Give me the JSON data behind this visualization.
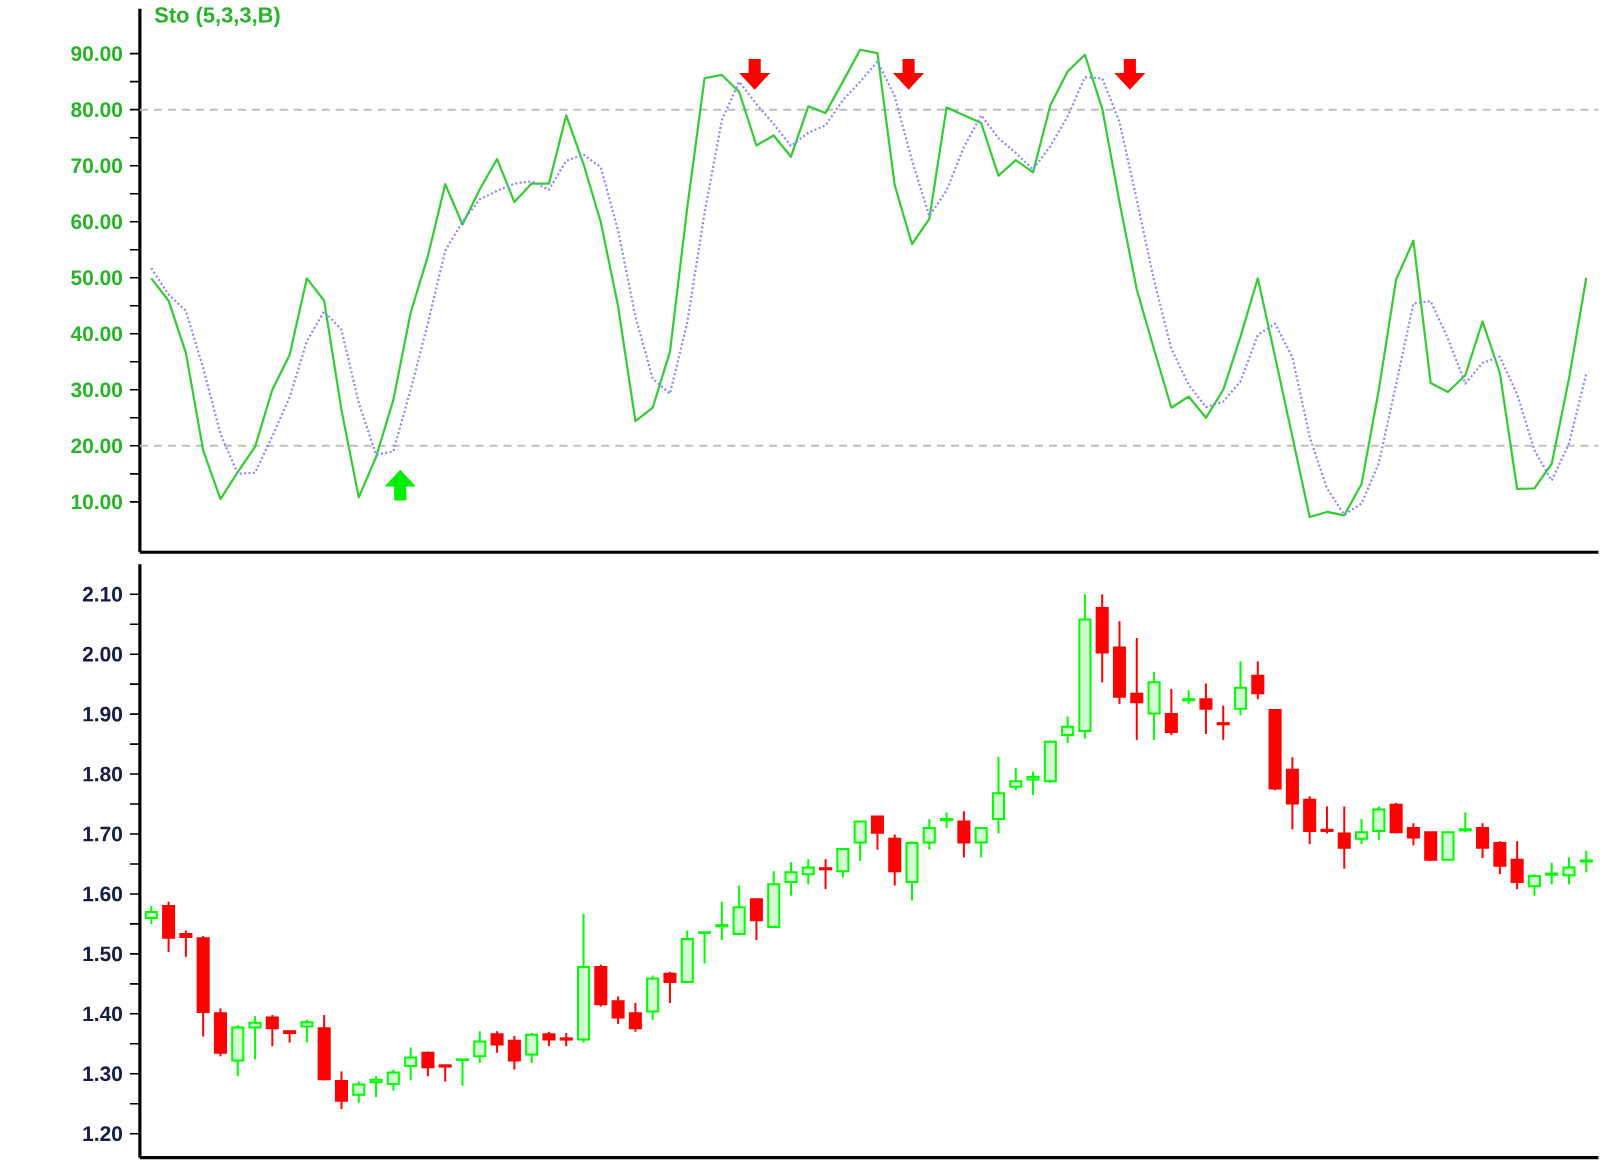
{
  "chart_data": [
    {
      "type": "line",
      "title": "Sto (5,3,3,B)",
      "tick_labels": "y",
      "ylim": [
        1,
        98
      ],
      "categories": [
        null,
        null,
        null,
        null,
        null,
        null,
        null,
        null,
        null,
        null,
        null,
        null,
        null,
        null,
        null,
        null,
        null,
        null,
        null,
        null,
        null,
        null,
        null,
        null,
        null,
        null,
        null,
        null,
        null,
        null,
        null,
        null,
        null,
        null,
        null,
        null,
        null,
        null,
        null,
        null,
        null,
        null,
        null,
        null,
        null,
        null,
        null,
        null,
        null,
        null,
        null,
        null,
        null,
        null,
        null,
        null,
        null,
        null,
        null,
        null,
        null,
        null,
        null,
        null,
        null,
        null,
        null,
        null,
        null,
        null,
        null,
        null,
        null,
        null,
        null,
        null,
        null,
        null,
        null,
        null,
        null,
        null,
        null,
        null
      ],
      "yticks": [
        {
          "value": 10,
          "label": "10.00"
        },
        {
          "value": 15,
          "label": null
        },
        {
          "value": 20,
          "label": "20.00"
        },
        {
          "value": 25,
          "label": null
        },
        {
          "value": 30,
          "label": "30.00"
        },
        {
          "value": 35,
          "label": null
        },
        {
          "value": 40,
          "label": "40.00"
        },
        {
          "value": 45,
          "label": null
        },
        {
          "value": 50,
          "label": "50.00"
        },
        {
          "value": 55,
          "label": null
        },
        {
          "value": 60,
          "label": "60.00"
        },
        {
          "value": 65,
          "label": null
        },
        {
          "value": 70,
          "label": "70.00"
        },
        {
          "value": 75,
          "label": null
        },
        {
          "value": 80,
          "label": "80.00"
        },
        {
          "value": 85,
          "label": null
        },
        {
          "value": 90,
          "label": "90.00"
        }
      ],
      "ref_lines": [
        {
          "axis": "y",
          "value": 20,
          "color": "#c0c0c0",
          "line_style": "dashed"
        },
        {
          "axis": "y",
          "value": 80,
          "color": "#c0c0c0",
          "line_style": "dashed"
        }
      ],
      "series": [
        {
          "color": "#33cc33",
          "line_style": "solid",
          "values": [
            49.9,
            45.9,
            36.6,
            19.2,
            10.5,
            15.3,
            19.8,
            30.0,
            36.2,
            49.9,
            45.9,
            26.4,
            10.8,
            18.0,
            28.2,
            43.7,
            53.9,
            66.7,
            59.5,
            65.8,
            71.2,
            63.5,
            66.8,
            66.8,
            79.0,
            70.3,
            59.9,
            44.9,
            24.4,
            26.8,
            36.8,
            62.5,
            85.6,
            86.2,
            83.2,
            73.6,
            75.4,
            71.6,
            80.6,
            79.4,
            85.0,
            90.7,
            90.1,
            66.5,
            56.0,
            60.5,
            80.4,
            79.0,
            77.6,
            68.2,
            71.0,
            68.8,
            80.8,
            86.8,
            89.8,
            80.2,
            63.5,
            47.9,
            37.2,
            26.8,
            28.8,
            25.0,
            30.0,
            39.5,
            49.9,
            35.9,
            21.6,
            7.3,
            8.2,
            7.6,
            13.2,
            30.0,
            49.7,
            56.6,
            31.2,
            29.6,
            32.6,
            42.2,
            33.0,
            12.3,
            12.4,
            16.8,
            32.0,
            50.0
          ]
        },
        {
          "color": "#8888ff",
          "line_style": "dotted",
          "values": [
            51.7,
            47.0,
            44.1,
            33.9,
            22.1,
            15.0,
            15.2,
            21.7,
            28.7,
            38.7,
            44.0,
            40.7,
            27.7,
            18.4,
            19.0,
            30.0,
            41.9,
            54.8,
            60.0,
            64.0,
            65.5,
            66.8,
            67.2,
            65.7,
            70.9,
            72.0,
            69.7,
            58.4,
            43.1,
            32.0,
            29.3,
            42.0,
            61.6,
            78.1,
            85.0,
            81.0,
            77.4,
            73.5,
            75.9,
            77.2,
            81.7,
            85.0,
            88.6,
            82.4,
            70.9,
            61.0,
            65.6,
            73.3,
            79.0,
            74.9,
            72.3,
            69.3,
            73.5,
            78.8,
            85.8,
            85.6,
            77.8,
            63.9,
            49.5,
            37.3,
            30.9,
            26.9,
            27.9,
            31.5,
            39.8,
            41.8,
            35.8,
            21.6,
            12.4,
            7.7,
            9.7,
            16.9,
            31.0,
            45.4,
            45.8,
            39.1,
            31.1,
            34.8,
            35.9,
            29.2,
            19.2,
            13.8,
            20.4,
            32.9
          ]
        }
      ]
    },
    {
      "type": "candlestick",
      "tick_labels": "y",
      "ylim": [
        1.16,
        2.15
      ],
      "categories": [
        null,
        null,
        null,
        null,
        null,
        null,
        null,
        null,
        null,
        null,
        null,
        null,
        null,
        null,
        null,
        null,
        null,
        null,
        null,
        null,
        null,
        null,
        null,
        null,
        null,
        null,
        null,
        null,
        null,
        null,
        null,
        null,
        null,
        null,
        null,
        null,
        null,
        null,
        null,
        null,
        null,
        null,
        null,
        null,
        null,
        null,
        null,
        null,
        null,
        null,
        null,
        null,
        null,
        null,
        null,
        null,
        null,
        null,
        null,
        null,
        null,
        null,
        null,
        null,
        null,
        null,
        null,
        null,
        null,
        null,
        null,
        null,
        null,
        null,
        null,
        null,
        null,
        null,
        null,
        null,
        null,
        null,
        null,
        null
      ],
      "yticks": [
        {
          "value": 1.2,
          "label": "1.20"
        },
        {
          "value": 1.25,
          "label": null
        },
        {
          "value": 1.3,
          "label": "1.30"
        },
        {
          "value": 1.35,
          "label": null
        },
        {
          "value": 1.4,
          "label": "1.40"
        },
        {
          "value": 1.45,
          "label": null
        },
        {
          "value": 1.5,
          "label": "1.50"
        },
        {
          "value": 1.55,
          "label": null
        },
        {
          "value": 1.6,
          "label": "1.60"
        },
        {
          "value": 1.65,
          "label": null
        },
        {
          "value": 1.7,
          "label": "1.70"
        },
        {
          "value": 1.75,
          "label": null
        },
        {
          "value": 1.8,
          "label": "1.80"
        },
        {
          "value": 1.85,
          "label": null
        },
        {
          "value": 1.9,
          "label": "1.90"
        },
        {
          "value": 1.95,
          "label": null
        },
        {
          "value": 2.0,
          "label": "2.00"
        },
        {
          "value": 2.05,
          "label": null
        },
        {
          "value": 2.1,
          "label": "2.10"
        }
      ],
      "ohlc": [
        [
          1.56,
          1.58,
          1.55,
          1.57
        ],
        [
          1.58,
          1.587,
          1.503,
          1.527
        ],
        [
          1.533,
          1.539,
          1.495,
          1.528
        ],
        [
          1.526,
          1.53,
          1.362,
          1.403
        ],
        [
          1.401,
          1.409,
          1.329,
          1.335
        ],
        [
          1.322,
          1.381,
          1.296,
          1.377
        ],
        [
          1.377,
          1.396,
          1.324,
          1.385
        ],
        [
          1.394,
          1.398,
          1.346,
          1.376
        ],
        [
          1.371,
          1.371,
          1.352,
          1.368
        ],
        [
          1.379,
          1.39,
          1.352,
          1.386
        ],
        [
          1.376,
          1.398,
          1.289,
          1.291
        ],
        [
          1.288,
          1.304,
          1.241,
          1.255
        ],
        [
          1.265,
          1.287,
          1.252,
          1.282
        ],
        [
          1.286,
          1.296,
          1.261,
          1.29
        ],
        [
          1.283,
          1.307,
          1.272,
          1.302
        ],
        [
          1.313,
          1.344,
          1.289,
          1.327
        ],
        [
          1.335,
          1.337,
          1.296,
          1.311
        ],
        [
          1.314,
          1.315,
          1.287,
          1.312
        ],
        [
          1.323,
          1.324,
          1.28,
          1.324
        ],
        [
          1.329,
          1.371,
          1.318,
          1.354
        ],
        [
          1.366,
          1.371,
          1.335,
          1.349
        ],
        [
          1.355,
          1.363,
          1.307,
          1.322
        ],
        [
          1.332,
          1.368,
          1.318,
          1.365
        ],
        [
          1.366,
          1.37,
          1.346,
          1.357
        ],
        [
          1.359,
          1.368,
          1.346,
          1.357
        ],
        [
          1.357,
          1.567,
          1.352,
          1.478
        ],
        [
          1.478,
          1.482,
          1.412,
          1.416
        ],
        [
          1.421,
          1.429,
          1.383,
          1.394
        ],
        [
          1.401,
          1.418,
          1.37,
          1.376
        ],
        [
          1.404,
          1.464,
          1.39,
          1.459
        ],
        [
          1.467,
          1.47,
          1.418,
          1.453
        ],
        [
          1.453,
          1.539,
          1.453,
          1.525
        ],
        [
          1.535,
          1.536,
          1.484,
          1.536
        ],
        [
          1.546,
          1.587,
          1.523,
          1.548
        ],
        [
          1.533,
          1.614,
          1.531,
          1.578
        ],
        [
          1.591,
          1.591,
          1.523,
          1.556
        ],
        [
          1.545,
          1.638,
          1.545,
          1.616
        ],
        [
          1.62,
          1.653,
          1.597,
          1.636
        ],
        [
          1.633,
          1.658,
          1.616,
          1.644
        ],
        [
          1.643,
          1.658,
          1.608,
          1.641
        ],
        [
          1.638,
          1.677,
          1.627,
          1.675
        ],
        [
          1.686,
          1.721,
          1.655,
          1.721
        ],
        [
          1.729,
          1.729,
          1.674,
          1.702
        ],
        [
          1.692,
          1.699,
          1.614,
          1.638
        ],
        [
          1.62,
          1.688,
          1.589,
          1.685
        ],
        [
          1.686,
          1.725,
          1.674,
          1.71
        ],
        [
          1.723,
          1.736,
          1.71,
          1.725
        ],
        [
          1.721,
          1.738,
          1.661,
          1.686
        ],
        [
          1.686,
          1.71,
          1.661,
          1.71
        ],
        [
          1.725,
          1.829,
          1.701,
          1.768
        ],
        [
          1.779,
          1.81,
          1.773,
          1.788
        ],
        [
          1.791,
          1.804,
          1.765,
          1.795
        ],
        [
          1.788,
          1.856,
          1.785,
          1.854
        ],
        [
          1.865,
          1.896,
          1.852,
          1.879
        ],
        [
          1.872,
          2.1,
          1.859,
          2.058
        ],
        [
          2.077,
          2.1,
          1.953,
          2.003
        ],
        [
          2.011,
          2.055,
          1.917,
          1.929
        ],
        [
          1.934,
          2.027,
          1.857,
          1.92
        ],
        [
          1.901,
          1.97,
          1.857,
          1.953
        ],
        [
          1.9,
          1.942,
          1.865,
          1.87
        ],
        [
          1.923,
          1.94,
          1.917,
          1.925
        ],
        [
          1.925,
          1.951,
          1.867,
          1.909
        ],
        [
          1.885,
          1.914,
          1.857,
          1.883
        ],
        [
          1.909,
          1.988,
          1.898,
          1.944
        ],
        [
          1.964,
          1.988,
          1.925,
          1.935
        ],
        [
          1.907,
          1.907,
          1.773,
          1.776
        ],
        [
          1.807,
          1.828,
          1.708,
          1.751
        ],
        [
          1.757,
          1.763,
          1.683,
          1.705
        ],
        [
          1.707,
          1.746,
          1.701,
          1.705
        ],
        [
          1.701,
          1.746,
          1.642,
          1.677
        ],
        [
          1.692,
          1.725,
          1.683,
          1.703
        ],
        [
          1.705,
          1.746,
          1.69,
          1.741
        ],
        [
          1.749,
          1.752,
          1.703,
          1.703
        ],
        [
          1.71,
          1.718,
          1.681,
          1.694
        ],
        [
          1.703,
          1.703,
          1.655,
          1.657
        ],
        [
          1.657,
          1.703,
          1.655,
          1.703
        ],
        [
          1.706,
          1.736,
          1.703,
          1.708
        ],
        [
          1.71,
          1.718,
          1.66,
          1.677
        ],
        [
          1.685,
          1.688,
          1.633,
          1.647
        ],
        [
          1.657,
          1.688,
          1.608,
          1.62
        ],
        [
          1.613,
          1.633,
          1.597,
          1.63
        ],
        [
          1.632,
          1.652,
          1.616,
          1.634
        ],
        [
          1.631,
          1.661,
          1.616,
          1.644
        ],
        [
          1.654,
          1.672,
          1.636,
          1.656
        ]
      ],
      "colors": [
        "#00ff00",
        "#ff0000",
        "#ff0000",
        "#ff0000",
        "#ff0000",
        "#00ff00",
        "#00ff00",
        "#ff0000",
        "#ff0000",
        "#00ff00",
        "#ff0000",
        "#ff0000",
        "#00ff00",
        "#00ff00",
        "#00ff00",
        "#00ff00",
        "#ff0000",
        "#ff0000",
        "#00ff00",
        "#00ff00",
        "#ff0000",
        "#ff0000",
        "#00ff00",
        "#ff0000",
        "#ff0000",
        "#00ff00",
        "#ff0000",
        "#ff0000",
        "#ff0000",
        "#00ff00",
        "#ff0000",
        "#00ff00",
        "#00ff00",
        "#00ff00",
        "#00ff00",
        "#ff0000",
        "#00ff00",
        "#00ff00",
        "#00ff00",
        "#ff0000",
        "#00ff00",
        "#00ff00",
        "#ff0000",
        "#ff0000",
        "#00ff00",
        "#00ff00",
        "#00ff00",
        "#ff0000",
        "#00ff00",
        "#00ff00",
        "#00ff00",
        "#00ff00",
        "#00ff00",
        "#00ff00",
        "#00ff00",
        "#ff0000",
        "#ff0000",
        "#ff0000",
        "#00ff00",
        "#ff0000",
        "#00ff00",
        "#ff0000",
        "#ff0000",
        "#00ff00",
        "#ff0000",
        "#ff0000",
        "#ff0000",
        "#ff0000",
        "#ff0000",
        "#ff0000",
        "#00ff00",
        "#00ff00",
        "#ff0000",
        "#ff0000",
        "#ff0000",
        "#00ff00",
        "#00ff00",
        "#ff0000",
        "#ff0000",
        "#ff0000",
        "#00ff00",
        "#00ff00",
        "#00ff00",
        "#00ff00"
      ]
    }
  ]
}
